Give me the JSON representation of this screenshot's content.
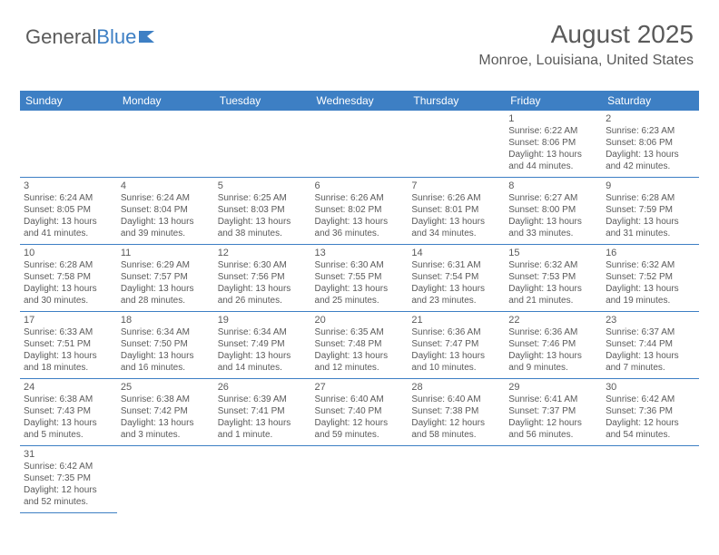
{
  "logo": {
    "text_gray": "General",
    "text_blue": "Blue"
  },
  "header": {
    "month_title": "August 2025",
    "location": "Monroe, Louisiana, United States"
  },
  "colors": {
    "header_bg": "#3d7fc4",
    "header_text": "#ffffff",
    "body_text": "#5a5a5a",
    "border": "#3d7fc4",
    "background": "#ffffff"
  },
  "weekdays": [
    "Sunday",
    "Monday",
    "Tuesday",
    "Wednesday",
    "Thursday",
    "Friday",
    "Saturday"
  ],
  "weeks": [
    [
      null,
      null,
      null,
      null,
      null,
      {
        "n": "1",
        "sr": "6:22 AM",
        "ss": "8:06 PM",
        "dl": "13 hours and 44 minutes."
      },
      {
        "n": "2",
        "sr": "6:23 AM",
        "ss": "8:06 PM",
        "dl": "13 hours and 42 minutes."
      }
    ],
    [
      {
        "n": "3",
        "sr": "6:24 AM",
        "ss": "8:05 PM",
        "dl": "13 hours and 41 minutes."
      },
      {
        "n": "4",
        "sr": "6:24 AM",
        "ss": "8:04 PM",
        "dl": "13 hours and 39 minutes."
      },
      {
        "n": "5",
        "sr": "6:25 AM",
        "ss": "8:03 PM",
        "dl": "13 hours and 38 minutes."
      },
      {
        "n": "6",
        "sr": "6:26 AM",
        "ss": "8:02 PM",
        "dl": "13 hours and 36 minutes."
      },
      {
        "n": "7",
        "sr": "6:26 AM",
        "ss": "8:01 PM",
        "dl": "13 hours and 34 minutes."
      },
      {
        "n": "8",
        "sr": "6:27 AM",
        "ss": "8:00 PM",
        "dl": "13 hours and 33 minutes."
      },
      {
        "n": "9",
        "sr": "6:28 AM",
        "ss": "7:59 PM",
        "dl": "13 hours and 31 minutes."
      }
    ],
    [
      {
        "n": "10",
        "sr": "6:28 AM",
        "ss": "7:58 PM",
        "dl": "13 hours and 30 minutes."
      },
      {
        "n": "11",
        "sr": "6:29 AM",
        "ss": "7:57 PM",
        "dl": "13 hours and 28 minutes."
      },
      {
        "n": "12",
        "sr": "6:30 AM",
        "ss": "7:56 PM",
        "dl": "13 hours and 26 minutes."
      },
      {
        "n": "13",
        "sr": "6:30 AM",
        "ss": "7:55 PM",
        "dl": "13 hours and 25 minutes."
      },
      {
        "n": "14",
        "sr": "6:31 AM",
        "ss": "7:54 PM",
        "dl": "13 hours and 23 minutes."
      },
      {
        "n": "15",
        "sr": "6:32 AM",
        "ss": "7:53 PM",
        "dl": "13 hours and 21 minutes."
      },
      {
        "n": "16",
        "sr": "6:32 AM",
        "ss": "7:52 PM",
        "dl": "13 hours and 19 minutes."
      }
    ],
    [
      {
        "n": "17",
        "sr": "6:33 AM",
        "ss": "7:51 PM",
        "dl": "13 hours and 18 minutes."
      },
      {
        "n": "18",
        "sr": "6:34 AM",
        "ss": "7:50 PM",
        "dl": "13 hours and 16 minutes."
      },
      {
        "n": "19",
        "sr": "6:34 AM",
        "ss": "7:49 PM",
        "dl": "13 hours and 14 minutes."
      },
      {
        "n": "20",
        "sr": "6:35 AM",
        "ss": "7:48 PM",
        "dl": "13 hours and 12 minutes."
      },
      {
        "n": "21",
        "sr": "6:36 AM",
        "ss": "7:47 PM",
        "dl": "13 hours and 10 minutes."
      },
      {
        "n": "22",
        "sr": "6:36 AM",
        "ss": "7:46 PM",
        "dl": "13 hours and 9 minutes."
      },
      {
        "n": "23",
        "sr": "6:37 AM",
        "ss": "7:44 PM",
        "dl": "13 hours and 7 minutes."
      }
    ],
    [
      {
        "n": "24",
        "sr": "6:38 AM",
        "ss": "7:43 PM",
        "dl": "13 hours and 5 minutes."
      },
      {
        "n": "25",
        "sr": "6:38 AM",
        "ss": "7:42 PM",
        "dl": "13 hours and 3 minutes."
      },
      {
        "n": "26",
        "sr": "6:39 AM",
        "ss": "7:41 PM",
        "dl": "13 hours and 1 minute."
      },
      {
        "n": "27",
        "sr": "6:40 AM",
        "ss": "7:40 PM",
        "dl": "12 hours and 59 minutes."
      },
      {
        "n": "28",
        "sr": "6:40 AM",
        "ss": "7:38 PM",
        "dl": "12 hours and 58 minutes."
      },
      {
        "n": "29",
        "sr": "6:41 AM",
        "ss": "7:37 PM",
        "dl": "12 hours and 56 minutes."
      },
      {
        "n": "30",
        "sr": "6:42 AM",
        "ss": "7:36 PM",
        "dl": "12 hours and 54 minutes."
      }
    ],
    [
      {
        "n": "31",
        "sr": "6:42 AM",
        "ss": "7:35 PM",
        "dl": "12 hours and 52 minutes."
      },
      null,
      null,
      null,
      null,
      null,
      null
    ]
  ],
  "labels": {
    "sunrise": "Sunrise:",
    "sunset": "Sunset:",
    "daylight": "Daylight:"
  }
}
